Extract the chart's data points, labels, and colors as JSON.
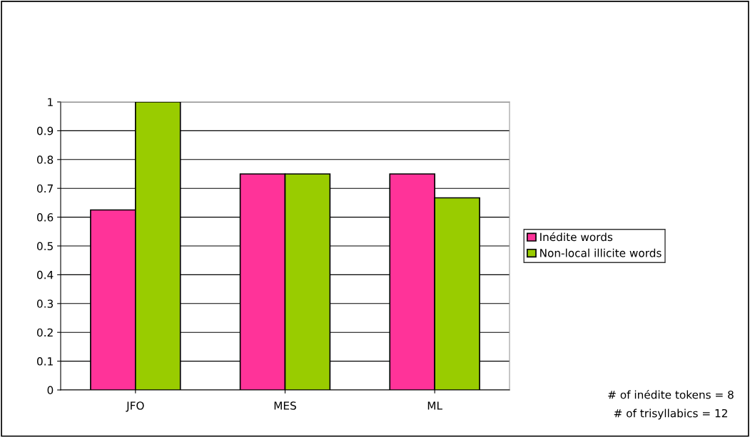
{
  "chart_data": {
    "type": "bar",
    "categories": [
      "JFO",
      "MES",
      "ML"
    ],
    "series": [
      {
        "name": "Inédite words",
        "color": "#ff3399",
        "values": [
          0.625,
          0.75,
          0.75
        ]
      },
      {
        "name": "Non-local illicite words",
        "color": "#99cc00",
        "values": [
          1,
          0.75,
          0.667
        ]
      }
    ],
    "ylim": [
      0,
      1
    ],
    "yticks": [
      0,
      0.1,
      0.2,
      0.3,
      0.4,
      0.5,
      0.6,
      0.7,
      0.8,
      0.9,
      1
    ],
    "grid": "y",
    "legend": "right",
    "annotations": [
      "# of inédite tokens = 8",
      "# of trisyllabics = 12"
    ]
  }
}
